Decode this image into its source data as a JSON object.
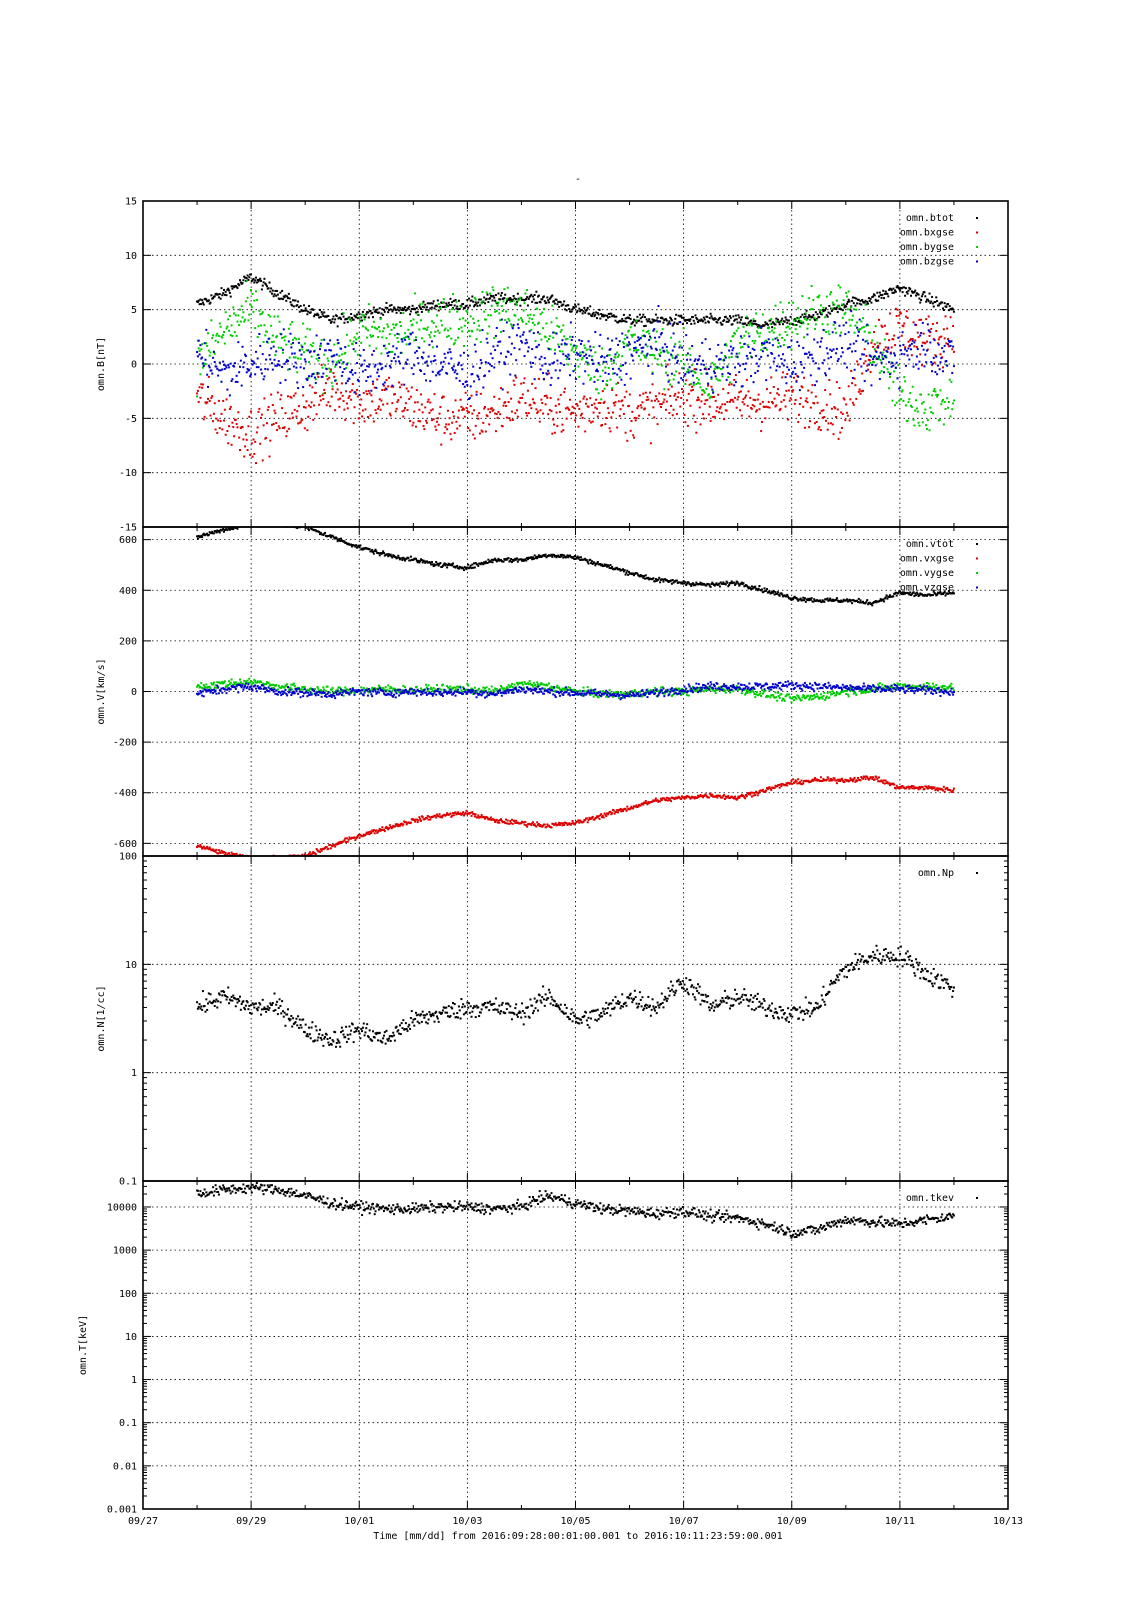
{
  "figure": {
    "title": "-",
    "xlabel": "Time [mm/dd]  from 2016:09:28:00:01:00.001  to  2016:10:11:23:59:00.001"
  },
  "chart_data": [
    {
      "type": "scatter",
      "ylabel": "omn.B[nT]",
      "yscale": "linear",
      "ylim": [
        -15,
        15
      ],
      "yticks": [
        -15,
        -10,
        -5,
        0,
        5,
        10,
        15
      ],
      "xlim": [
        "09/27",
        "10/13"
      ],
      "xticks": [
        "09/27",
        "09/29",
        "10/01",
        "10/03",
        "10/05",
        "10/07",
        "10/09",
        "10/11",
        "10/13"
      ],
      "grid": true,
      "legend": "top-right",
      "series": [
        {
          "name": "omn.btot",
          "color": "#000000",
          "x": [
            28.0,
            28.5,
            29.0,
            29.5,
            30.0,
            30.5,
            31.0,
            31.5,
            32.0,
            32.5,
            33.0,
            33.5,
            34.0,
            34.5,
            35.0,
            35.5,
            36.0,
            36.5,
            37.0,
            37.5,
            38.0,
            38.5,
            39.0,
            39.5,
            40.0,
            40.5,
            41.0,
            41.5,
            42.0
          ],
          "y": [
            5.5,
            6.5,
            8.0,
            6.5,
            5.0,
            4.0,
            4.5,
            5.0,
            5.0,
            5.5,
            5.5,
            6.0,
            6.0,
            6.0,
            5.0,
            4.5,
            4.0,
            4.0,
            4.0,
            4.0,
            4.0,
            3.5,
            4.0,
            4.5,
            5.5,
            6.0,
            7.0,
            6.0,
            5.0
          ]
        },
        {
          "name": "omn.bxgse",
          "color": "#dd0000",
          "x": [
            28.0,
            28.5,
            29.0,
            29.5,
            30.0,
            30.5,
            31.0,
            31.5,
            32.0,
            32.5,
            33.0,
            33.5,
            34.0,
            34.5,
            35.0,
            35.5,
            36.0,
            36.5,
            37.0,
            37.5,
            38.0,
            38.5,
            39.0,
            39.5,
            40.0,
            40.5,
            41.0,
            41.5,
            42.0
          ],
          "y": [
            -3.0,
            -5.0,
            -6.5,
            -5.0,
            -4.0,
            -2.0,
            -3.5,
            -3.0,
            -4.0,
            -5.0,
            -5.0,
            -4.5,
            -3.0,
            -4.0,
            -4.5,
            -3.5,
            -4.5,
            -4.0,
            -3.0,
            -3.5,
            -3.5,
            -3.5,
            -3.0,
            -3.5,
            -4.5,
            2.0,
            3.5,
            2.0,
            3.0
          ]
        },
        {
          "name": "omn.bygse",
          "color": "#00cc00",
          "x": [
            28.0,
            28.5,
            29.0,
            29.5,
            30.0,
            30.5,
            31.0,
            31.5,
            32.0,
            32.5,
            33.0,
            33.5,
            34.0,
            34.5,
            35.0,
            35.5,
            36.0,
            36.5,
            37.0,
            37.5,
            38.0,
            38.5,
            39.0,
            39.5,
            40.0,
            40.5,
            41.0,
            41.5,
            42.0
          ],
          "y": [
            0.0,
            3.0,
            5.0,
            2.0,
            1.0,
            0.0,
            3.0,
            2.5,
            3.0,
            4.0,
            4.0,
            5.0,
            5.0,
            3.0,
            1.0,
            -1.0,
            2.0,
            1.0,
            0.0,
            -2.0,
            2.0,
            3.0,
            4.0,
            5.0,
            5.0,
            2.0,
            -3.0,
            -4.0,
            -3.0
          ]
        },
        {
          "name": "omn.bzgse",
          "color": "#0000cc",
          "x": [
            28.0,
            28.5,
            29.0,
            29.5,
            30.0,
            30.5,
            31.0,
            31.5,
            32.0,
            32.5,
            33.0,
            33.5,
            34.0,
            34.5,
            35.0,
            35.5,
            36.0,
            36.5,
            37.0,
            37.5,
            38.0,
            38.5,
            39.0,
            39.5,
            40.0,
            40.5,
            41.0,
            41.5,
            42.0
          ],
          "y": [
            1.0,
            -1.0,
            0.0,
            1.0,
            0.0,
            1.0,
            -1.0,
            0.0,
            1.0,
            0.0,
            -1.0,
            1.0,
            2.0,
            0.0,
            1.0,
            0.0,
            1.0,
            2.0,
            0.0,
            0.0,
            0.0,
            1.0,
            0.0,
            1.0,
            2.0,
            0.0,
            1.0,
            2.0,
            0.0
          ]
        }
      ]
    },
    {
      "type": "scatter",
      "ylabel": "omn.V[km/s]",
      "yscale": "linear",
      "ylim": [
        -650,
        650
      ],
      "yticks": [
        -600,
        -400,
        -200,
        0,
        200,
        400,
        600
      ],
      "xlim": [
        "09/27",
        "10/13"
      ],
      "grid": true,
      "legend": "top-right",
      "series": [
        {
          "name": "omn.vtot",
          "color": "#000000",
          "x": [
            28.0,
            28.5,
            29.0,
            29.5,
            30.0,
            30.5,
            31.0,
            31.5,
            32.0,
            32.5,
            33.0,
            33.5,
            34.0,
            34.5,
            35.0,
            35.5,
            36.0,
            36.5,
            37.0,
            37.5,
            38.0,
            38.5,
            39.0,
            39.5,
            40.0,
            40.5,
            41.0,
            41.5,
            42.0
          ],
          "y": [
            610,
            640,
            660,
            660,
            650,
            610,
            570,
            540,
            520,
            500,
            490,
            520,
            520,
            540,
            530,
            500,
            470,
            440,
            430,
            420,
            430,
            400,
            370,
            360,
            360,
            350,
            390,
            380,
            390
          ]
        },
        {
          "name": "omn.vxgse",
          "color": "#dd0000",
          "x": [
            28.0,
            28.5,
            29.0,
            29.5,
            30.0,
            30.5,
            31.0,
            31.5,
            32.0,
            32.5,
            33.0,
            33.5,
            34.0,
            34.5,
            35.0,
            35.5,
            36.0,
            36.5,
            37.0,
            37.5,
            38.0,
            38.5,
            39.0,
            39.5,
            40.0,
            40.5,
            41.0,
            41.5,
            42.0
          ],
          "y": [
            -610,
            -640,
            -660,
            -660,
            -650,
            -610,
            -570,
            -540,
            -510,
            -490,
            -480,
            -510,
            -520,
            -530,
            -520,
            -490,
            -460,
            -430,
            -420,
            -410,
            -420,
            -390,
            -360,
            -350,
            -350,
            -340,
            -380,
            -380,
            -390
          ]
        },
        {
          "name": "omn.vygse",
          "color": "#00cc00",
          "x": [
            28.0,
            28.5,
            29.0,
            29.5,
            30.0,
            30.5,
            31.0,
            31.5,
            32.0,
            32.5,
            33.0,
            33.5,
            34.0,
            34.5,
            35.0,
            35.5,
            36.0,
            36.5,
            37.0,
            37.5,
            38.0,
            38.5,
            39.0,
            39.5,
            40.0,
            40.5,
            41.0,
            41.5,
            42.0
          ],
          "y": [
            20,
            30,
            40,
            20,
            10,
            0,
            5,
            10,
            5,
            10,
            10,
            0,
            30,
            20,
            0,
            -10,
            -10,
            0,
            0,
            10,
            10,
            -10,
            -30,
            -20,
            0,
            10,
            20,
            20,
            15
          ]
        },
        {
          "name": "omn.vzgse",
          "color": "#0000cc",
          "x": [
            28.0,
            28.5,
            29.0,
            29.5,
            30.0,
            30.5,
            31.0,
            31.5,
            32.0,
            32.5,
            33.0,
            33.5,
            34.0,
            34.5,
            35.0,
            35.5,
            36.0,
            36.5,
            37.0,
            37.5,
            38.0,
            38.5,
            39.0,
            39.5,
            40.0,
            40.5,
            41.0,
            41.5,
            42.0
          ],
          "y": [
            -10,
            10,
            20,
            0,
            -5,
            -10,
            0,
            -5,
            0,
            -5,
            0,
            -10,
            10,
            0,
            -5,
            -10,
            -15,
            -5,
            10,
            20,
            20,
            20,
            25,
            20,
            15,
            10,
            10,
            5,
            0
          ]
        }
      ]
    },
    {
      "type": "scatter",
      "ylabel": "omn.N[1/cc]",
      "yscale": "log",
      "ylim": [
        0.1,
        100
      ],
      "yticks": [
        0.1,
        1,
        10,
        100
      ],
      "ytick_labels": [
        "0.1",
        "1",
        "10",
        "100"
      ],
      "xlim": [
        "09/27",
        "10/13"
      ],
      "grid": true,
      "legend": "top-right",
      "series": [
        {
          "name": "omn.Np",
          "color": "#000000",
          "x": [
            28.0,
            28.5,
            29.0,
            29.5,
            30.0,
            30.5,
            31.0,
            31.5,
            32.0,
            32.5,
            33.0,
            33.5,
            34.0,
            34.5,
            35.0,
            35.5,
            36.0,
            36.5,
            37.0,
            37.5,
            38.0,
            38.5,
            39.0,
            39.5,
            40.0,
            40.5,
            41.0,
            41.5,
            42.0
          ],
          "y": [
            4.0,
            5.0,
            4.0,
            4.0,
            2.5,
            2.0,
            2.5,
            2.0,
            3.0,
            3.5,
            4.0,
            4.0,
            3.5,
            5.0,
            3.0,
            3.5,
            5.0,
            4.0,
            7.0,
            4.0,
            5.0,
            4.0,
            3.5,
            4.0,
            9.0,
            12.0,
            12.0,
            8.0,
            6.0
          ]
        }
      ]
    },
    {
      "type": "scatter",
      "ylabel": "omn.T[keV]",
      "yscale": "log",
      "ylim": [
        0.001,
        40000
      ],
      "yticks": [
        0.001,
        0.01,
        0.1,
        1,
        10,
        100,
        1000,
        10000
      ],
      "ytick_labels": [
        "0.001",
        "0.01",
        "0.1",
        "1",
        "10",
        "100",
        "1000",
        "10000"
      ],
      "xlim": [
        "09/27",
        "10/13"
      ],
      "grid": true,
      "legend": "top-right",
      "series": [
        {
          "name": "omn.tkev",
          "color": "#000000",
          "x": [
            28.0,
            28.5,
            29.0,
            29.5,
            30.0,
            30.5,
            31.0,
            31.5,
            32.0,
            32.5,
            33.0,
            33.5,
            34.0,
            34.5,
            35.0,
            35.5,
            36.0,
            36.5,
            37.0,
            37.5,
            38.0,
            38.5,
            39.0,
            39.5,
            40.0,
            40.5,
            41.0,
            41.5,
            42.0
          ],
          "y": [
            20000,
            25000,
            28000,
            25000,
            18000,
            12000,
            10000,
            9000,
            9000,
            10000,
            10000,
            9000,
            10000,
            18000,
            12000,
            9000,
            8000,
            7000,
            8000,
            6000,
            5500,
            4000,
            2500,
            3000,
            5000,
            4500,
            4000,
            5000,
            6000
          ]
        }
      ]
    }
  ]
}
